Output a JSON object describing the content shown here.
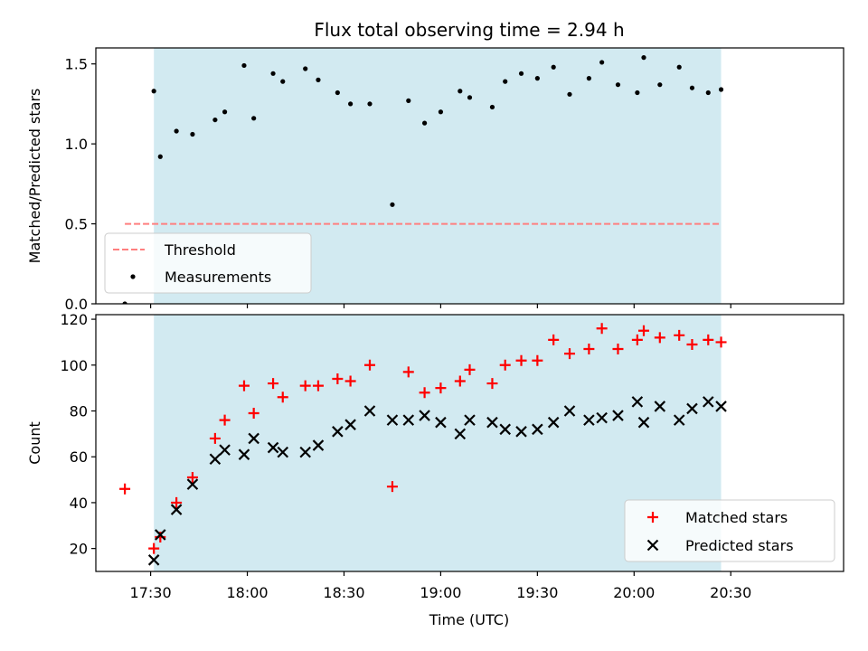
{
  "figure": {
    "title": "Flux total observing time = 2.94 h",
    "xlabel": "Time (UTC)"
  },
  "chart_data": [
    {
      "type": "scatter",
      "ylabel": "Matched/Predicted stars",
      "ylim": [
        0,
        1.6
      ],
      "yticks": [
        0.0,
        0.5,
        1.0,
        1.5
      ],
      "ytick_labels": [
        "0.0",
        "0.5",
        "1.0",
        "1.5"
      ],
      "xlim_min": [
        1033,
        1265
      ],
      "xticks_min": [
        1050,
        1080,
        1110,
        1140,
        1170,
        1200,
        1230
      ],
      "xtick_labels": [
        "17:30",
        "18:00",
        "18:30",
        "19:00",
        "19:30",
        "20:00",
        "20:30"
      ],
      "shaded_span_min": [
        1051,
        1227
      ],
      "shaded_color": "#add8e6",
      "threshold": {
        "name": "Threshold",
        "value": 0.5,
        "x_min": [
          1042,
          1227
        ],
        "color": "#ff7f7f"
      },
      "legend": {
        "placement": "lower-left",
        "entries": [
          "Threshold",
          "Measurements"
        ]
      },
      "series": [
        {
          "name": "Measurements",
          "color": "#000000",
          "marker": "dot",
          "x_min": [
            1042,
            1051,
            1053,
            1058,
            1063,
            1070,
            1073,
            1079,
            1082,
            1088,
            1091,
            1098,
            1102,
            1108,
            1112,
            1118,
            1125,
            1130,
            1135,
            1140,
            1146,
            1149,
            1156,
            1160,
            1165,
            1170,
            1175,
            1180,
            1186,
            1190,
            1195,
            1201,
            1203,
            1208,
            1214,
            1218,
            1223,
            1227
          ],
          "y": [
            0.0,
            1.33,
            0.92,
            1.08,
            1.06,
            1.15,
            1.2,
            1.49,
            1.16,
            1.44,
            1.39,
            1.47,
            1.4,
            1.32,
            1.25,
            1.25,
            0.62,
            1.27,
            1.13,
            1.2,
            1.33,
            1.29,
            1.23,
            1.39,
            1.44,
            1.41,
            1.48,
            1.31,
            1.41,
            1.51,
            1.37,
            1.32,
            1.54,
            1.37,
            1.48,
            1.35,
            1.32,
            1.34
          ]
        }
      ]
    },
    {
      "type": "scatter",
      "ylabel": "Count",
      "ylim": [
        10,
        122
      ],
      "yticks": [
        20,
        40,
        60,
        80,
        100,
        120
      ],
      "ytick_labels": [
        "20",
        "40",
        "60",
        "80",
        "100",
        "120"
      ],
      "xlim_min": [
        1033,
        1265
      ],
      "xticks_min": [
        1050,
        1080,
        1110,
        1140,
        1170,
        1200,
        1230
      ],
      "xtick_labels": [
        "17:30",
        "18:00",
        "18:30",
        "19:00",
        "19:30",
        "20:00",
        "20:30"
      ],
      "shaded_span_min": [
        1051,
        1227
      ],
      "shaded_color": "#add8e6",
      "legend": {
        "placement": "lower-right",
        "entries": [
          "Matched stars",
          "Predicted stars"
        ]
      },
      "series": [
        {
          "name": "Matched stars",
          "color": "#ff0000",
          "marker": "plus",
          "x_min": [
            1042,
            1051,
            1053,
            1058,
            1063,
            1070,
            1073,
            1079,
            1082,
            1088,
            1091,
            1098,
            1102,
            1108,
            1112,
            1118,
            1125,
            1130,
            1135,
            1140,
            1146,
            1149,
            1156,
            1160,
            1165,
            1170,
            1175,
            1180,
            1186,
            1190,
            1195,
            1201,
            1203,
            1208,
            1214,
            1218,
            1223,
            1227
          ],
          "y": [
            46,
            20,
            25,
            40,
            51,
            68,
            76,
            91,
            79,
            92,
            86,
            91,
            91,
            94,
            93,
            100,
            47,
            97,
            88,
            90,
            93,
            98,
            92,
            100,
            102,
            102,
            111,
            105,
            107,
            116,
            107,
            111,
            115,
            112,
            113,
            109,
            111,
            110
          ]
        },
        {
          "name": "Predicted stars",
          "color": "#000000",
          "marker": "x",
          "x_min": [
            1051,
            1053,
            1058,
            1063,
            1070,
            1073,
            1079,
            1082,
            1088,
            1091,
            1098,
            1102,
            1108,
            1112,
            1118,
            1125,
            1130,
            1135,
            1140,
            1146,
            1149,
            1156,
            1160,
            1165,
            1170,
            1175,
            1180,
            1186,
            1190,
            1195,
            1201,
            1203,
            1208,
            1214,
            1218,
            1223,
            1227
          ],
          "y": [
            15,
            26,
            37,
            48,
            59,
            63,
            61,
            68,
            64,
            62,
            62,
            65,
            71,
            74,
            80,
            76,
            76,
            78,
            75,
            70,
            76,
            75,
            72,
            71,
            72,
            75,
            80,
            76,
            77,
            78,
            84,
            75,
            82,
            76,
            81,
            84,
            82
          ]
        }
      ]
    }
  ]
}
